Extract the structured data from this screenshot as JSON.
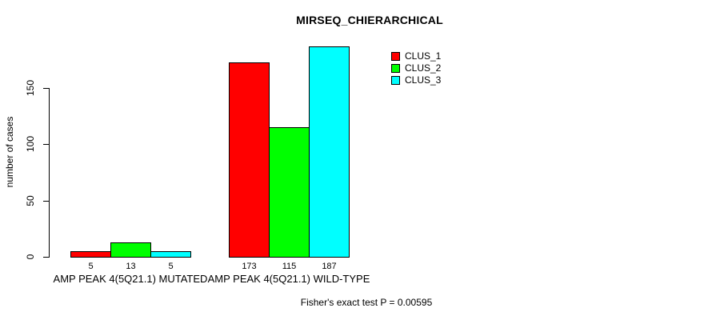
{
  "chart_data": {
    "type": "bar",
    "title": "MIRSEQ_CHIERARCHICAL",
    "ylabel": "number of cases",
    "xlabel": "",
    "categories": [
      "AMP PEAK 4(5Q21.1) MUTATED",
      "AMP PEAK 4(5Q21.1) WILD-TYPE"
    ],
    "series": [
      {
        "name": "CLUS_1",
        "color": "#ff0000",
        "values": [
          5,
          173
        ]
      },
      {
        "name": "CLUS_2",
        "color": "#00ff00",
        "values": [
          13,
          115
        ]
      },
      {
        "name": "CLUS_3",
        "color": "#00ffff",
        "values": [
          5,
          187
        ]
      }
    ],
    "yticks": [
      0,
      50,
      100,
      150
    ],
    "ylim": [
      0,
      190
    ],
    "bar_value_labels_shown": true,
    "grid": false,
    "legend_position": "top-right",
    "annotation": "Fisher's exact test P = 0.00595"
  },
  "colors": {
    "background": "#ffffff",
    "axis": "#000000",
    "text": "#000000",
    "bar_border": "#000000"
  }
}
